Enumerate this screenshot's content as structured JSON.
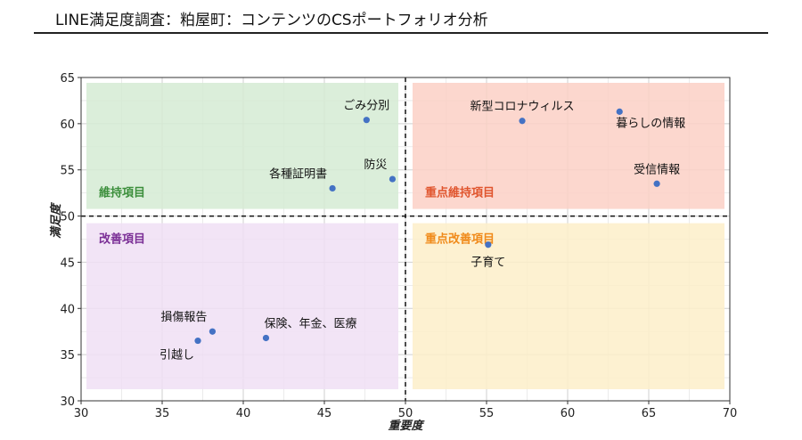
{
  "title": "LINE満足度調査：粕屋町：コンテンツのCSポートフォリオ分析",
  "chart_data": {
    "type": "scatter",
    "title": "LINE満足度調査：粕屋町：コンテンツのCSポートフォリオ分析",
    "xlabel": "重要度",
    "ylabel": "満足度",
    "xlim": [
      30,
      70
    ],
    "ylim": [
      30,
      65
    ],
    "xticks": [
      30,
      35,
      40,
      45,
      50,
      55,
      60,
      65,
      70
    ],
    "yticks": [
      30,
      35,
      40,
      45,
      50,
      55,
      60,
      65
    ],
    "grid": true,
    "reference_lines": {
      "x": 50,
      "y": 50,
      "style": "dashed"
    },
    "quadrants": [
      {
        "label": "維持項目",
        "x_range": [
          30,
          50
        ],
        "y_range": [
          50,
          65
        ],
        "fill": "#d5ebd3",
        "label_color": "#3c8f3c"
      },
      {
        "label": "重点維持項目",
        "x_range": [
          50,
          70
        ],
        "y_range": [
          50,
          65
        ],
        "fill": "#fbd0c6",
        "label_color": "#e0552e"
      },
      {
        "label": "改善項目",
        "x_range": [
          30,
          50
        ],
        "y_range": [
          30,
          50
        ],
        "fill": "#f0dff5",
        "label_color": "#7b2f96"
      },
      {
        "label": "重点改善項目",
        "x_range": [
          50,
          70
        ],
        "y_range": [
          30,
          50
        ],
        "fill": "#fdefc9",
        "label_color": "#f08a1a"
      }
    ],
    "point_color": "#4472c4",
    "points": [
      {
        "label": "ごみ分別",
        "x": 47.6,
        "y": 60.4,
        "label_pos": "above"
      },
      {
        "label": "防災",
        "x": 49.2,
        "y": 54.0,
        "label_pos": "above-left"
      },
      {
        "label": "各種証明書",
        "x": 45.5,
        "y": 53.0,
        "label_pos": "above-left"
      },
      {
        "label": "新型コロナウィルス",
        "x": 57.2,
        "y": 60.3,
        "label_pos": "above"
      },
      {
        "label": "暮らしの情報",
        "x": 63.2,
        "y": 61.3,
        "label_pos": "below-right"
      },
      {
        "label": "受信情報",
        "x": 65.5,
        "y": 53.5,
        "label_pos": "above"
      },
      {
        "label": "子育て",
        "x": 55.1,
        "y": 46.9,
        "label_pos": "below"
      },
      {
        "label": "損傷報告",
        "x": 38.1,
        "y": 37.5,
        "label_pos": "above-left"
      },
      {
        "label": "保険、年金、医療",
        "x": 41.4,
        "y": 36.8,
        "label_pos": "above-right"
      },
      {
        "label": "引越し",
        "x": 37.2,
        "y": 36.5,
        "label_pos": "below-left"
      }
    ]
  }
}
